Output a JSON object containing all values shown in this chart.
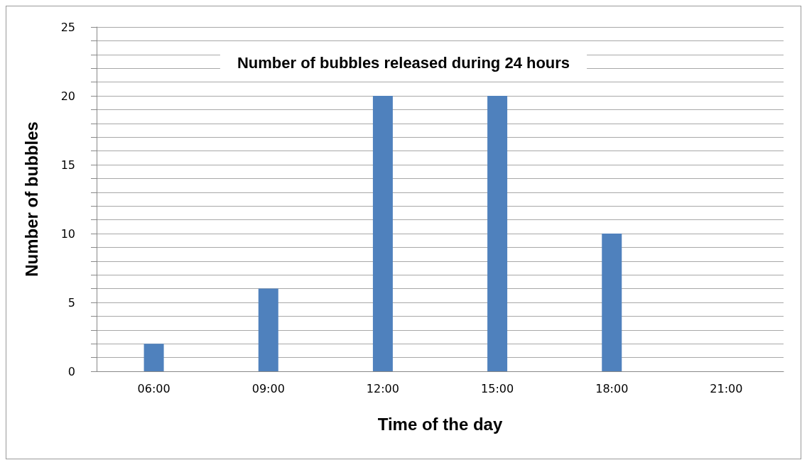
{
  "chart_data": {
    "type": "bar",
    "title": "Number of bubbles released during 24 hours",
    "xlabel": "Time of the day",
    "ylabel": "Number of bubbles",
    "categories": [
      "06:00",
      "09:00",
      "12:00",
      "15:00",
      "18:00",
      "21:00"
    ],
    "values": [
      2,
      6,
      20,
      20,
      10,
      0
    ],
    "color": "#4f81bd",
    "ylim": [
      0,
      25
    ],
    "yticks": [
      0,
      {
        "value": 1,
        "label": null
      },
      {
        "value": 2,
        "label": null
      },
      {
        "value": 3,
        "label": null
      },
      {
        "value": 4,
        "label": null
      },
      5,
      {
        "value": 6,
        "label": null
      },
      {
        "value": 7,
        "label": null
      },
      {
        "value": 8,
        "label": null
      },
      {
        "value": 9,
        "label": null
      },
      10,
      {
        "value": 11,
        "label": null
      },
      {
        "value": 12,
        "label": null
      },
      {
        "value": 13,
        "label": null
      },
      {
        "value": 14,
        "label": null
      },
      15,
      {
        "value": 16,
        "label": null
      },
      {
        "value": 17,
        "label": null
      },
      {
        "value": 18,
        "label": null
      },
      {
        "value": 19,
        "label": null
      },
      20,
      {
        "value": 21,
        "label": null
      },
      {
        "value": 22,
        "label": null
      },
      {
        "value": 23,
        "label": null
      },
      {
        "value": 24,
        "label": null
      },
      25
    ],
    "grid": "y"
  }
}
